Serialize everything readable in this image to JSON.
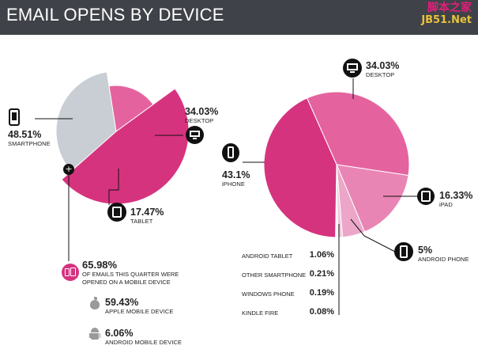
{
  "header": {
    "title": "EMAIL OPENS BY DEVICE",
    "watermark_line1": "脚本之家",
    "watermark_line2": "JB51.Net"
  },
  "colors": {
    "magenta": "#d6337f",
    "pink": "#e4639f",
    "light_pink": "#eba6c8",
    "pale_pink": "#f1cadd",
    "gray": "#c9cdd4",
    "header_bg": "#3f4248"
  },
  "chart_data": [
    {
      "type": "pie",
      "title": "",
      "slices": [
        {
          "label": "SMARTPHONE",
          "value": 48.51,
          "display": "48.51%",
          "color": "#d6337f",
          "icon": "smartphone-icon"
        },
        {
          "label": "DESKTOP",
          "value": 34.03,
          "display": "34.03%",
          "color": "#c9cdd4",
          "icon": "desktop-icon"
        },
        {
          "label": "TABLET",
          "value": 17.47,
          "display": "17.47%",
          "color": "#e4639f",
          "icon": "tablet-icon"
        }
      ]
    },
    {
      "type": "pie",
      "title": "",
      "slices": [
        {
          "label": "DESKTOP",
          "value": 34.03,
          "display": "34.03%",
          "color": "#e4639f",
          "icon": "desktop-icon"
        },
        {
          "label": "iPAD",
          "value": 16.33,
          "display": "16.33%",
          "color": "#e985b4",
          "icon": "ipad-icon"
        },
        {
          "label": "ANDROID PHONE",
          "value": 5,
          "display": "5%",
          "color": "#eba6c8",
          "icon": "android-phone-icon"
        },
        {
          "label": "ANDROID TABLET",
          "value": 1.06,
          "display": "1.06%",
          "color": "#f1cadd"
        },
        {
          "label": "OTHER SMARTPHONE",
          "value": 0.21,
          "display": "0.21%",
          "color": "#f1cadd"
        },
        {
          "label": "WINDOWS PHONE",
          "value": 0.19,
          "display": "0.19%",
          "color": "#f1cadd"
        },
        {
          "label": "KINDLE FIRE",
          "value": 0.08,
          "display": "0.08%",
          "color": "#f1cadd"
        },
        {
          "label": "iPHONE",
          "value": 43.1,
          "display": "43.1%",
          "color": "#d6337f",
          "icon": "iphone-icon"
        }
      ]
    }
  ],
  "mobile_summary": {
    "percent": "65.98%",
    "caption": "OF EMAILS THIS QUARTER WERE OPENED ON A MOBILE DEVICE",
    "apple_percent": "59.43%",
    "apple_label": "APPLE MOBILE DEVICE",
    "android_percent": "6.06%",
    "android_label": "ANDROID MOBILE DEVICE"
  }
}
